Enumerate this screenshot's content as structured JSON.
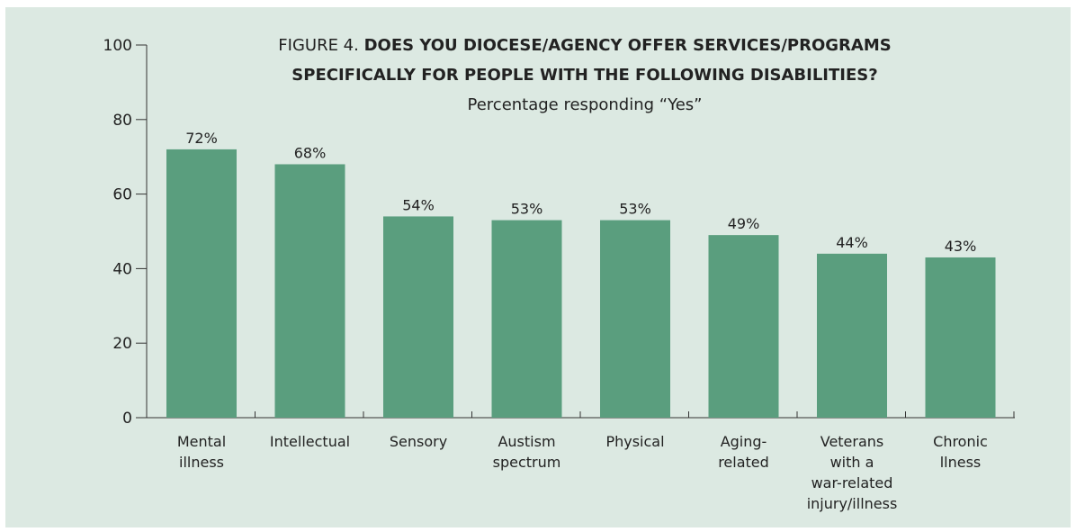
{
  "chart_data": {
    "type": "bar",
    "title_prefix": "FIGURE 4.",
    "title_line1": "DOES YOU DIOCESE/AGENCY OFFER SERVICES/PROGRAMS",
    "title_line2": "SPECIFICALLY FOR PEOPLE WITH THE FOLLOWING DISABILITIES?",
    "subtitle": "Percentage responding “Yes”",
    "categories": [
      [
        "Mental",
        "illness"
      ],
      [
        "Intellectual"
      ],
      [
        "Sensory"
      ],
      [
        "Austism",
        "spectrum"
      ],
      [
        "Physical"
      ],
      [
        "Aging-",
        "related"
      ],
      [
        "Veterans",
        "with a",
        "war-related",
        "injury/illness"
      ],
      [
        "Chronic",
        "llness"
      ]
    ],
    "values": [
      72,
      68,
      54,
      53,
      53,
      49,
      44,
      43
    ],
    "data_labels": [
      "72%",
      "68%",
      "54%",
      "53%",
      "53%",
      "49%",
      "44%",
      "43%"
    ],
    "ylim": [
      0,
      100
    ],
    "yticks": [
      0,
      20,
      40,
      60,
      80,
      100
    ],
    "xlabel": "",
    "ylabel": "",
    "grid": false,
    "legend": "none"
  },
  "colors": {
    "background": "#dce9e2",
    "bar": "#5a9e7e",
    "axis": "#333333",
    "text": "#222222"
  }
}
